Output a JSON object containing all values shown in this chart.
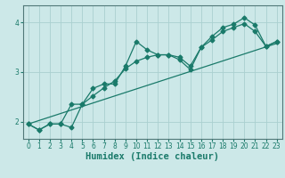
{
  "xlabel": "Humidex (Indice chaleur)",
  "bg_color": "#cce8e8",
  "grid_color": "#aad0d0",
  "line_color": "#1a7a6a",
  "xlim": [
    -0.5,
    23.5
  ],
  "ylim": [
    1.65,
    4.35
  ],
  "xticks": [
    0,
    1,
    2,
    3,
    4,
    5,
    6,
    7,
    8,
    9,
    10,
    11,
    12,
    13,
    14,
    15,
    16,
    17,
    18,
    19,
    20,
    21,
    22,
    23
  ],
  "yticks": [
    2,
    3,
    4
  ],
  "series1_x": [
    0,
    1,
    2,
    3,
    4,
    5,
    6,
    7,
    8,
    9,
    10,
    11,
    12,
    13,
    14,
    15,
    16,
    17,
    18,
    19,
    20,
    21,
    22,
    23
  ],
  "series1_y": [
    1.95,
    1.83,
    1.95,
    1.95,
    1.88,
    2.35,
    2.67,
    2.76,
    2.76,
    3.12,
    3.62,
    3.45,
    3.35,
    3.35,
    3.25,
    3.05,
    3.5,
    3.72,
    3.9,
    3.97,
    4.1,
    3.95,
    3.52,
    3.62
  ],
  "series2_x": [
    0,
    1,
    2,
    3,
    4,
    5,
    6,
    7,
    8,
    9,
    10,
    11,
    12,
    13,
    14,
    15,
    16,
    17,
    18,
    19,
    20,
    21,
    22,
    23
  ],
  "series2_y": [
    1.95,
    1.83,
    1.95,
    1.95,
    2.35,
    2.35,
    2.52,
    2.68,
    2.82,
    3.07,
    3.22,
    3.3,
    3.35,
    3.35,
    3.3,
    3.12,
    3.5,
    3.65,
    3.82,
    3.9,
    3.98,
    3.82,
    3.52,
    3.62
  ],
  "trend_x": [
    0,
    23
  ],
  "trend_y": [
    1.95,
    3.58
  ],
  "marker": "D",
  "markersize": 2.5,
  "linewidth": 0.9,
  "tick_fontsize": 5.5,
  "xlabel_fontsize": 7.5
}
